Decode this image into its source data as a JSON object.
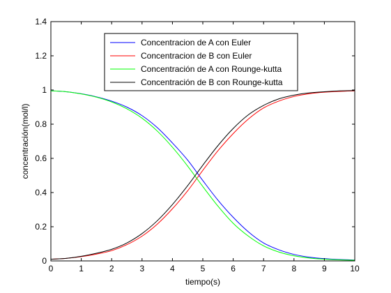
{
  "chart_data": {
    "type": "line",
    "title": "",
    "xlabel": "tiempo(s)",
    "ylabel": "concentración(mol/l)",
    "xlim": [
      0,
      10
    ],
    "ylim": [
      0,
      1.4
    ],
    "xticks": [
      "0",
      "1",
      "2",
      "3",
      "4",
      "5",
      "6",
      "7",
      "8",
      "9",
      "10"
    ],
    "yticks": [
      "0",
      "0.2",
      "0.4",
      "0.6",
      "0.8",
      "1",
      "1.2",
      "1.4"
    ],
    "grid": false,
    "legend_position": "top-center",
    "x": [
      0,
      0.5,
      1,
      1.5,
      2,
      2.5,
      3,
      3.5,
      4,
      4.5,
      5,
      5.5,
      6,
      6.5,
      7,
      7.5,
      8,
      8.5,
      9,
      9.5,
      10
    ],
    "series": [
      {
        "name": "Concentracion de A con Euler",
        "color": "#0000ff",
        "values": [
          0.995,
          0.99,
          0.978,
          0.96,
          0.935,
          0.9,
          0.85,
          0.78,
          0.69,
          0.59,
          0.47,
          0.355,
          0.255,
          0.17,
          0.105,
          0.065,
          0.038,
          0.022,
          0.013,
          0.008,
          0.005
        ]
      },
      {
        "name": "Concentracion de B con Euler",
        "color": "#ff0000",
        "values": [
          0.01,
          0.015,
          0.025,
          0.04,
          0.06,
          0.095,
          0.145,
          0.215,
          0.305,
          0.41,
          0.53,
          0.645,
          0.745,
          0.83,
          0.895,
          0.935,
          0.962,
          0.978,
          0.987,
          0.992,
          0.995
        ]
      },
      {
        "name": "Concentración de A con Rounge-kutta",
        "color": "#00ff00",
        "values": [
          0.995,
          0.99,
          0.977,
          0.958,
          0.93,
          0.89,
          0.835,
          0.76,
          0.665,
          0.555,
          0.435,
          0.32,
          0.22,
          0.145,
          0.088,
          0.052,
          0.03,
          0.017,
          0.01,
          0.006,
          0.004
        ]
      },
      {
        "name": "Concentración de B con Rounge-kutta",
        "color": "#000000",
        "values": [
          0.01,
          0.015,
          0.027,
          0.045,
          0.068,
          0.105,
          0.16,
          0.235,
          0.33,
          0.44,
          0.56,
          0.675,
          0.775,
          0.855,
          0.91,
          0.948,
          0.97,
          0.983,
          0.99,
          0.995,
          0.997
        ]
      }
    ]
  }
}
